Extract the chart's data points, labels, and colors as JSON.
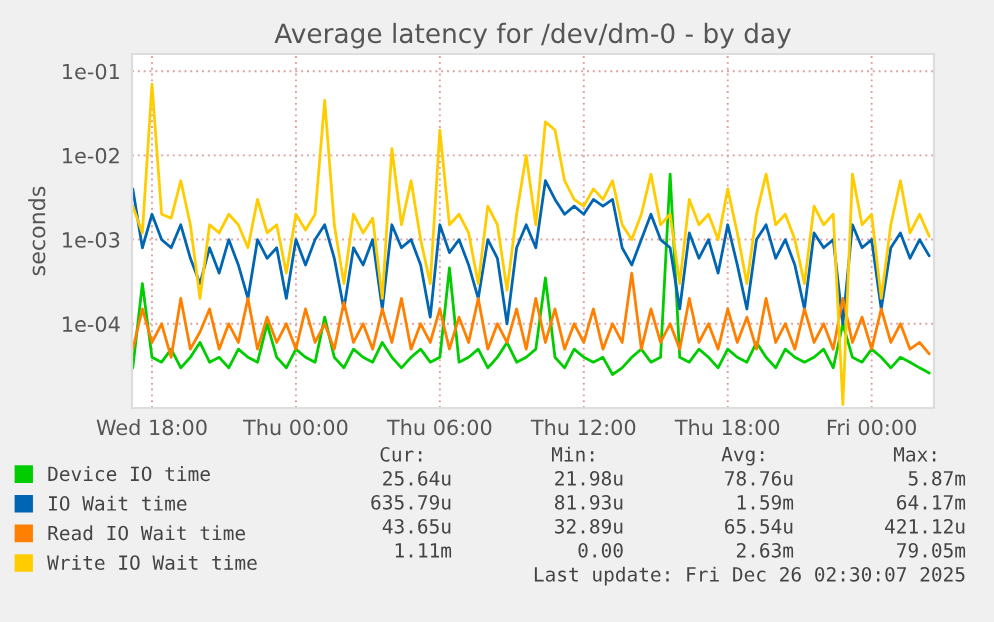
{
  "chart_data": {
    "type": "line",
    "title": "Average latency for /dev/dm-0 - by day",
    "ylabel": "seconds",
    "log": true,
    "grid": true,
    "legend": "bottom",
    "x": [
      "2025-12-24T17:12",
      "2025-12-24T17:36",
      "2025-12-24T18:00",
      "2025-12-24T18:24",
      "2025-12-24T18:48",
      "2025-12-24T19:12",
      "2025-12-24T19:36",
      "2025-12-24T20:00",
      "2025-12-24T20:24",
      "2025-12-24T20:48",
      "2025-12-24T21:12",
      "2025-12-24T21:36",
      "2025-12-24T22:00",
      "2025-12-24T22:24",
      "2025-12-24T22:48",
      "2025-12-24T23:12",
      "2025-12-24T23:36",
      "2025-12-25T00:00",
      "2025-12-25T00:24",
      "2025-12-25T00:48",
      "2025-12-25T01:12",
      "2025-12-25T01:36",
      "2025-12-25T02:00",
      "2025-12-25T02:24",
      "2025-12-25T02:48",
      "2025-12-25T03:12",
      "2025-12-25T03:36",
      "2025-12-25T04:00",
      "2025-12-25T04:24",
      "2025-12-25T04:48",
      "2025-12-25T05:12",
      "2025-12-25T05:36",
      "2025-12-25T06:00",
      "2025-12-25T06:24",
      "2025-12-25T06:48",
      "2025-12-25T07:12",
      "2025-12-25T07:36",
      "2025-12-25T08:00",
      "2025-12-25T08:24",
      "2025-12-25T08:48",
      "2025-12-25T09:12",
      "2025-12-25T09:36",
      "2025-12-25T10:00",
      "2025-12-25T10:24",
      "2025-12-25T10:48",
      "2025-12-25T11:12",
      "2025-12-25T11:36",
      "2025-12-25T12:00",
      "2025-12-25T12:24",
      "2025-12-25T12:48",
      "2025-12-25T13:12",
      "2025-12-25T13:36",
      "2025-12-25T14:00",
      "2025-12-25T14:24",
      "2025-12-25T14:48",
      "2025-12-25T15:12",
      "2025-12-25T15:36",
      "2025-12-25T16:00",
      "2025-12-25T16:24",
      "2025-12-25T16:48",
      "2025-12-25T17:12",
      "2025-12-25T17:36",
      "2025-12-25T18:00",
      "2025-12-25T18:24",
      "2025-12-25T18:48",
      "2025-12-25T19:12",
      "2025-12-25T19:36",
      "2025-12-25T20:00",
      "2025-12-25T20:24",
      "2025-12-25T20:48",
      "2025-12-25T21:12",
      "2025-12-25T21:36",
      "2025-12-25T22:00",
      "2025-12-25T22:24",
      "2025-12-25T22:48",
      "2025-12-25T23:12",
      "2025-12-25T23:36",
      "2025-12-26T00:00",
      "2025-12-26T00:24",
      "2025-12-26T00:48",
      "2025-12-26T01:12",
      "2025-12-26T01:36",
      "2025-12-26T02:00",
      "2025-12-26T02:24"
    ],
    "xlim": [
      "2025-12-24T17:10",
      "2025-12-26T02:36"
    ],
    "xticks": [
      {
        "value": "2025-12-24T18:00",
        "label": "Wed 18:00"
      },
      {
        "value": "2025-12-25T00:00",
        "label": "Thu 00:00"
      },
      {
        "value": "2025-12-25T06:00",
        "label": "Thu 06:00"
      },
      {
        "value": "2025-12-25T12:00",
        "label": "Thu 12:00"
      },
      {
        "value": "2025-12-25T18:00",
        "label": "Thu 18:00"
      },
      {
        "value": "2025-12-26T00:00",
        "label": "Fri 00:00"
      }
    ],
    "ylim": [
      1e-05,
      0.16
    ],
    "yticks": [
      {
        "value": 0.0001,
        "label": "1e-04"
      },
      {
        "value": 0.001,
        "label": "1e-03"
      },
      {
        "value": 0.01,
        "label": "1e-02"
      },
      {
        "value": 0.1,
        "label": "1e-01"
      }
    ],
    "series": [
      {
        "name": "Device IO time",
        "color": "#00cc00",
        "values": [
          3e-05,
          0.0003,
          4e-05,
          3.5e-05,
          5e-05,
          3e-05,
          4e-05,
          6e-05,
          3.5e-05,
          4e-05,
          3e-05,
          5e-05,
          4e-05,
          3.5e-05,
          0.0001,
          4e-05,
          3e-05,
          5e-05,
          4e-05,
          3.5e-05,
          0.00012,
          4e-05,
          3e-05,
          5e-05,
          4e-05,
          3.5e-05,
          6e-05,
          4e-05,
          3e-05,
          4e-05,
          5e-05,
          3.5e-05,
          4e-05,
          0.00046,
          3.5e-05,
          4e-05,
          5e-05,
          3e-05,
          4e-05,
          6e-05,
          3.5e-05,
          4e-05,
          5e-05,
          0.00035,
          4e-05,
          3e-05,
          5e-05,
          4e-05,
          3.5e-05,
          4e-05,
          2.5e-05,
          3e-05,
          4e-05,
          5e-05,
          3.5e-05,
          4e-05,
          0.006,
          4e-05,
          3.5e-05,
          5e-05,
          4e-05,
          3e-05,
          5e-05,
          4e-05,
          3.5e-05,
          6e-05,
          4e-05,
          3e-05,
          5e-05,
          4e-05,
          3.5e-05,
          4e-05,
          5e-05,
          3e-05,
          0.0001,
          4e-05,
          3.5e-05,
          5e-05,
          4e-05,
          3e-05,
          4e-05,
          3.5e-05,
          3e-05,
          2.6e-05
        ]
      },
      {
        "name": "IO Wait time",
        "color": "#0066b3",
        "values": [
          0.004,
          0.0008,
          0.002,
          0.001,
          0.0008,
          0.0015,
          0.0006,
          0.0003,
          0.0008,
          0.0004,
          0.001,
          0.0005,
          0.0002,
          0.001,
          0.0006,
          0.0008,
          0.0002,
          0.001,
          0.0005,
          0.001,
          0.0015,
          0.0006,
          0.00015,
          0.0008,
          0.0005,
          0.001,
          0.00015,
          0.0015,
          0.0008,
          0.001,
          0.0005,
          0.00012,
          0.0015,
          0.0007,
          0.001,
          0.0005,
          0.0002,
          0.001,
          0.0006,
          0.0001,
          0.0008,
          0.0015,
          0.0008,
          0.005,
          0.003,
          0.002,
          0.0025,
          0.002,
          0.003,
          0.0025,
          0.003,
          0.0008,
          0.0005,
          0.001,
          0.002,
          0.001,
          0.0008,
          0.00015,
          0.0012,
          0.0006,
          0.001,
          0.0004,
          0.0015,
          0.0005,
          0.00015,
          0.001,
          0.0015,
          0.0006,
          0.001,
          0.0005,
          0.00015,
          0.0012,
          0.0008,
          0.001,
          0.0001,
          0.0015,
          0.0008,
          0.001,
          0.00015,
          0.0008,
          0.0012,
          0.0006,
          0.001,
          0.00064
        ]
      },
      {
        "name": "Read IO Wait time",
        "color": "#ff8000",
        "values": [
          5e-05,
          0.00015,
          6e-05,
          0.0001,
          4e-05,
          0.0002,
          5e-05,
          8e-05,
          0.00015,
          5e-05,
          0.0001,
          6e-05,
          0.0002,
          5e-05,
          0.00012,
          6e-05,
          0.0001,
          5e-05,
          0.00015,
          6e-05,
          0.0001,
          5e-05,
          0.00018,
          6e-05,
          0.0001,
          5e-05,
          0.00015,
          6e-05,
          0.0002,
          5e-05,
          0.0001,
          6e-05,
          0.00015,
          5e-05,
          0.00012,
          6e-05,
          0.0002,
          5e-05,
          0.0001,
          6e-05,
          0.00015,
          5e-05,
          0.0002,
          6e-05,
          0.00015,
          5e-05,
          0.0001,
          6e-05,
          0.00015,
          5e-05,
          0.0001,
          6e-05,
          0.0004,
          5e-05,
          0.00015,
          6e-05,
          0.0001,
          5e-05,
          0.0002,
          6e-05,
          0.0001,
          5e-05,
          0.00015,
          6e-05,
          0.00012,
          5e-05,
          0.0002,
          6e-05,
          0.0001,
          5e-05,
          0.00015,
          6e-05,
          0.0001,
          5e-05,
          0.0002,
          6e-05,
          0.00012,
          5e-05,
          0.00015,
          6e-05,
          0.0001,
          5e-05,
          6e-05,
          4.4e-05
        ]
      },
      {
        "name": "Write IO Wait time",
        "color": "#ffcc00",
        "values": [
          0.0025,
          0.0012,
          0.07,
          0.002,
          0.0018,
          0.005,
          0.0015,
          0.0002,
          0.0015,
          0.0012,
          0.002,
          0.0015,
          0.0008,
          0.003,
          0.0012,
          0.0015,
          0.0004,
          0.002,
          0.0013,
          0.002,
          0.045,
          0.0015,
          0.0003,
          0.002,
          0.0012,
          0.0018,
          0.0002,
          0.012,
          0.0015,
          0.005,
          0.001,
          0.0003,
          0.02,
          0.0015,
          0.002,
          0.0012,
          0.0003,
          0.0025,
          0.0015,
          0.00025,
          0.002,
          0.01,
          0.0015,
          0.025,
          0.02,
          0.005,
          0.003,
          0.0025,
          0.004,
          0.003,
          0.005,
          0.0015,
          0.001,
          0.002,
          0.006,
          0.0015,
          0.002,
          0.0003,
          0.003,
          0.0015,
          0.002,
          0.001,
          0.004,
          0.0012,
          0.0003,
          0.002,
          0.006,
          0.0015,
          0.002,
          0.001,
          0.0003,
          0.0025,
          0.0015,
          0.002,
          1.1e-05,
          0.006,
          0.0015,
          0.002,
          0.0002,
          0.0015,
          0.005,
          0.0012,
          0.002,
          0.0011
        ]
      }
    ],
    "annotations": [
      "Cur:",
      "Min:",
      "Avg:",
      "Max:",
      "25.64u",
      "21.98u",
      "78.76u",
      "5.87m",
      "635.79u",
      "81.93u",
      "1.59m",
      "64.17m",
      "43.65u",
      "32.89u",
      "65.54u",
      "421.12u",
      "1.11m",
      "0.00",
      "2.63m",
      "79.05m",
      "Last update: Fri Dec 26 02:30:07 2025"
    ]
  }
}
